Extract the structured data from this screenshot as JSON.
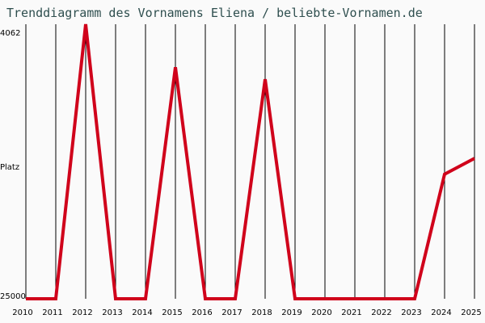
{
  "title": "Trenddiagramm des Vornamens Eliena / beliebte-Vornamen.de",
  "chart_data": {
    "type": "line",
    "title": "Trenddiagramm des Vornamens Eliena / beliebte-Vornamen.de",
    "xlabel": "",
    "ylabel": "Platz",
    "y_inverted": true,
    "ylim": [
      25000,
      4062
    ],
    "y_ticks": [
      "4062",
      "25000"
    ],
    "grid": "vertical",
    "x": [
      "2010",
      "2011",
      "2012",
      "2013",
      "2014",
      "2015",
      "2016",
      "2017",
      "2018",
      "2019",
      "2020",
      "2021",
      "2022",
      "2023",
      "2024",
      "2025"
    ],
    "series": [
      {
        "name": "Eliena",
        "color": "#d0021b",
        "values": [
          25000,
          25000,
          4062,
          25000,
          25000,
          6700,
          25000,
          25000,
          7650,
          25000,
          25000,
          25000,
          25000,
          25000,
          15150,
          13900
        ]
      }
    ]
  },
  "axis": {
    "y_top": "4062",
    "y_mid": "Platz",
    "y_bottom": "25000"
  }
}
